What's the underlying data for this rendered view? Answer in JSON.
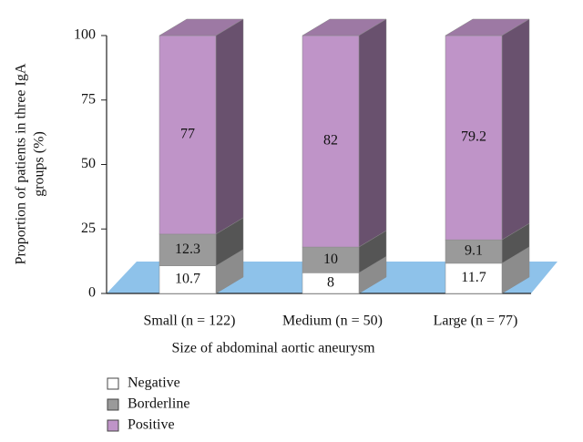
{
  "chart_data": {
    "type": "bar3d_stacked",
    "y_label": [
      "Proportion of patients in three IgA",
      "groups (%)"
    ],
    "x_label": "Size of abdominal aortic aneurysm",
    "categories": [
      "Small (n = 122)",
      "Medium (n = 50)",
      "Large (n = 77)"
    ],
    "series": [
      {
        "name": "Negative",
        "color": "#ffffff",
        "values": [
          10.7,
          8,
          11.7
        ]
      },
      {
        "name": "Borderline",
        "color": "#9a9a9a",
        "values": [
          12.3,
          10,
          9.1
        ]
      },
      {
        "name": "Positive",
        "color": "#bf94c8",
        "values": [
          77,
          82,
          79.2
        ]
      }
    ],
    "ylim": [
      0,
      100
    ],
    "yticks": [
      0,
      25,
      50,
      75,
      100
    ],
    "grid": false
  }
}
